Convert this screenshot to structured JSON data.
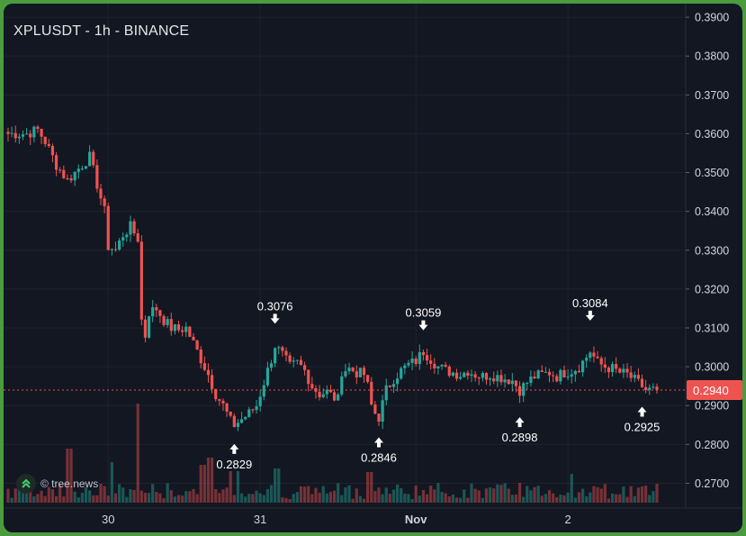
{
  "chart_data": {
    "type": "candlestick",
    "title": "XPLUSDT - 1h - BINANCE",
    "symbol": "XPLUSDT",
    "interval": "1h",
    "exchange": "BINANCE",
    "y_ticks": [
      "0.3900",
      "0.3800",
      "0.3700",
      "0.3600",
      "0.3500",
      "0.3400",
      "0.3300",
      "0.3200",
      "0.3100",
      "0.3000",
      "0.2900",
      "0.2800",
      "0.2700"
    ],
    "ylim": [
      0.265,
      0.3935
    ],
    "x_tick_labels": [
      "30",
      "31",
      "Nov",
      "2"
    ],
    "current_price": "0.2940",
    "current_price_value": 0.294,
    "annotations": [
      {
        "label": "0.2829",
        "type": "low",
        "bar": 61
      },
      {
        "label": "0.3076",
        "type": "high",
        "bar": 72
      },
      {
        "label": "0.2846",
        "type": "low",
        "bar": 100
      },
      {
        "label": "0.3059",
        "type": "high",
        "bar": 112
      },
      {
        "label": "0.2898",
        "type": "low",
        "bar": 138
      },
      {
        "label": "0.3084",
        "type": "high",
        "bar": 157
      },
      {
        "label": "0.2925",
        "type": "low",
        "bar": 171
      }
    ],
    "watermark": "© tree.news",
    "colors": {
      "up": "#26a69a",
      "down": "#ef5350",
      "background": "#131722",
      "text": "#d1d4dc"
    }
  }
}
